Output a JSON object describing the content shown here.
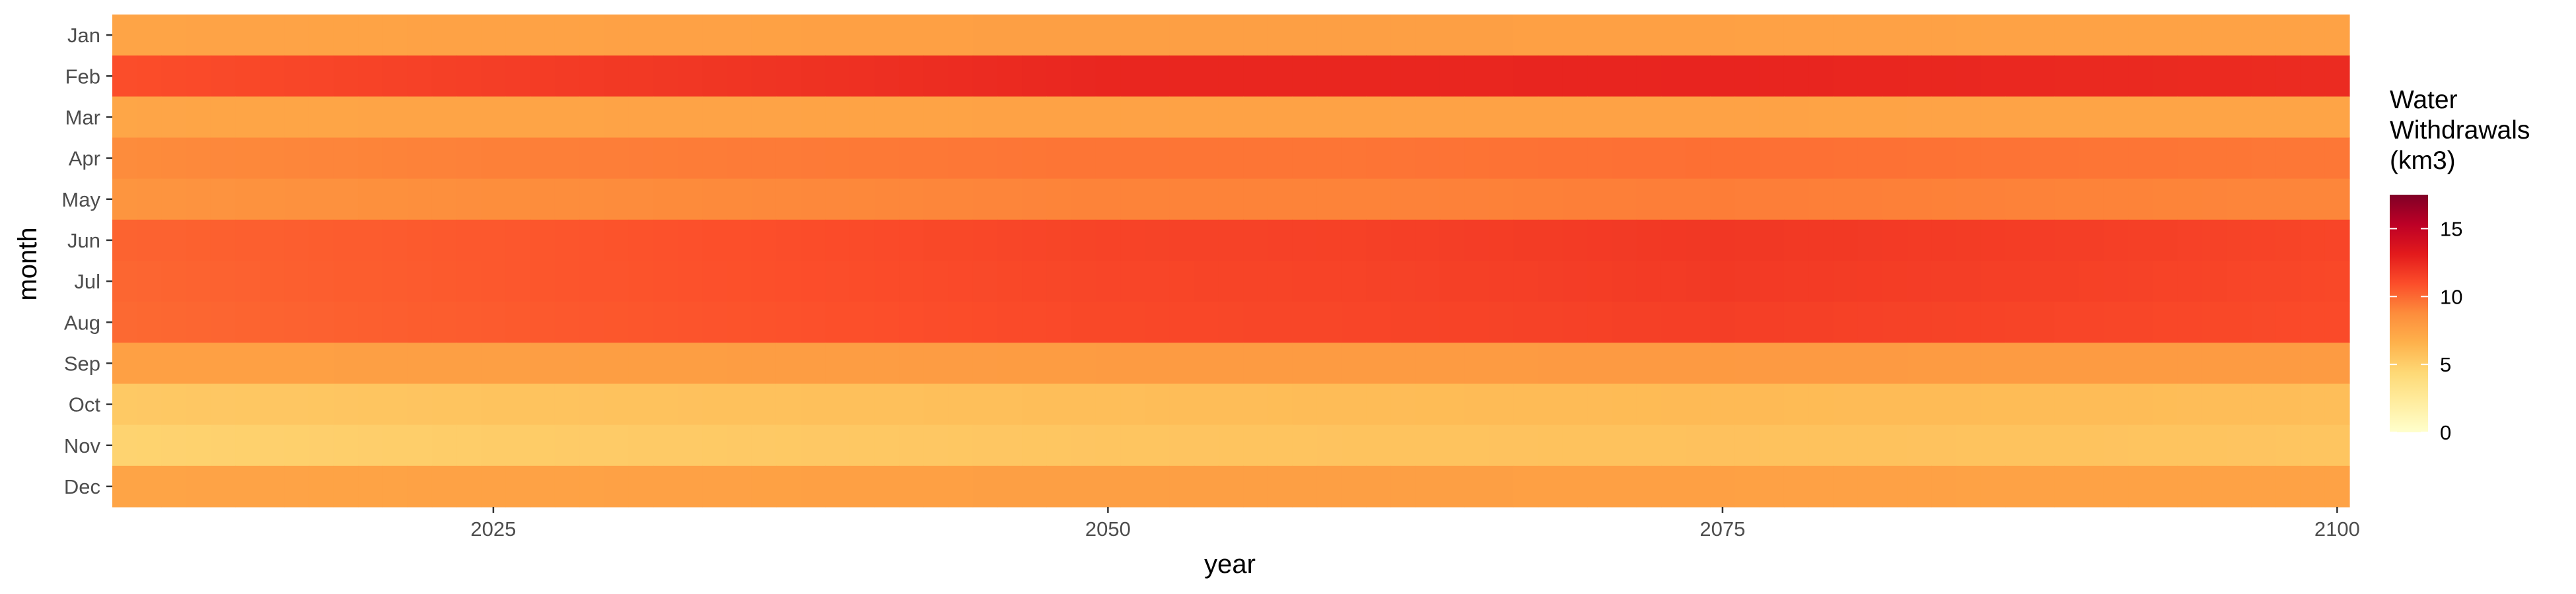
{
  "chart_data": {
    "type": "heatmap",
    "xlabel": "year",
    "ylabel": "month",
    "x_range": [
      2010,
      2100
    ],
    "x_ticks": [
      2025,
      2050,
      2075,
      2100
    ],
    "months": [
      "Jan",
      "Feb",
      "Mar",
      "Apr",
      "May",
      "Jun",
      "Jul",
      "Aug",
      "Sep",
      "Oct",
      "Nov",
      "Dec"
    ],
    "monthly_profile": {
      "description_years": [
        2010,
        2025,
        2050,
        2060,
        2075,
        2090,
        2100
      ],
      "values": {
        "Jan": [
          7.4,
          7.5,
          7.7,
          7.7,
          7.6,
          7.5,
          7.5
        ],
        "Feb": [
          11.0,
          11.6,
          12.6,
          12.6,
          12.7,
          12.5,
          12.4
        ],
        "Mar": [
          7.3,
          7.4,
          7.5,
          7.5,
          7.5,
          7.4,
          7.4
        ],
        "Apr": [
          8.8,
          9.2,
          9.6,
          9.6,
          9.8,
          9.6,
          9.5
        ],
        "May": [
          8.3,
          8.7,
          9.1,
          9.1,
          9.3,
          9.1,
          9.0
        ],
        "Jun": [
          10.2,
          10.6,
          11.4,
          11.5,
          11.9,
          11.6,
          11.3
        ],
        "Jul": [
          10.1,
          10.6,
          11.3,
          11.4,
          11.8,
          11.5,
          11.2
        ],
        "Aug": [
          10.0,
          10.5,
          11.2,
          11.3,
          11.6,
          11.3,
          11.1
        ],
        "Sep": [
          7.6,
          7.7,
          7.9,
          7.9,
          8.0,
          7.9,
          7.9
        ],
        "Oct": [
          5.3,
          5.6,
          5.9,
          6.0,
          6.1,
          6.0,
          5.9
        ],
        "Nov": [
          4.7,
          5.1,
          5.5,
          5.6,
          5.7,
          5.6,
          5.5
        ],
        "Dec": [
          7.4,
          7.5,
          7.7,
          7.7,
          7.6,
          7.5,
          7.5
        ]
      }
    },
    "legend": {
      "title_lines": [
        "Water",
        "Withdrawals",
        "(km3)"
      ],
      "breaks": [
        0,
        5,
        10,
        15
      ],
      "range": [
        0,
        17.5
      ],
      "placement": "right"
    },
    "palette": [
      "#ffffcc",
      "#ffeda0",
      "#fed976",
      "#feb24c",
      "#fd8d3c",
      "#fc4e2a",
      "#e31a1c",
      "#bd0026",
      "#800026"
    ],
    "grid": true
  }
}
